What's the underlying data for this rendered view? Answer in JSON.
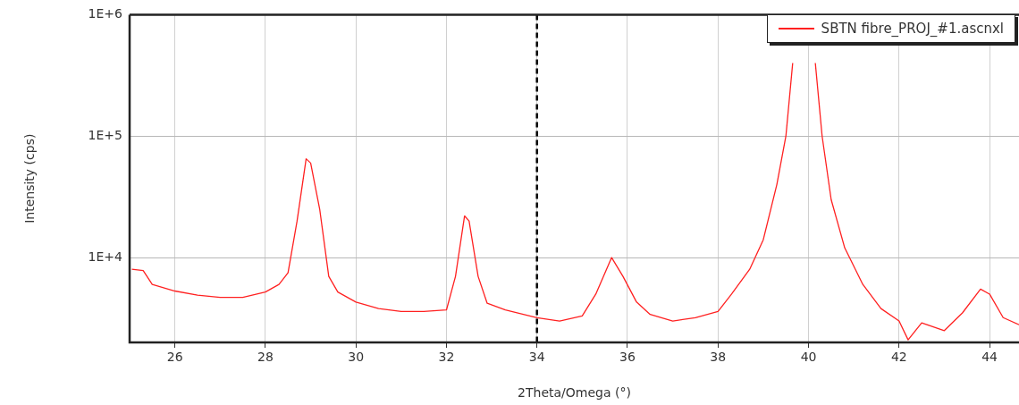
{
  "chart_data": {
    "type": "line",
    "xlabel": "2Theta/Omega (°)",
    "ylabel": "Intensity (cps)",
    "log": "y",
    "grid": true,
    "legend": "top right",
    "marker": "none",
    "line_style": "solid",
    "xlim": [
      25,
      44.65
    ],
    "xticks": [
      26,
      28,
      30,
      32,
      34,
      36,
      38,
      40,
      42,
      44
    ],
    "ylim": [
      2000,
      1000000
    ],
    "yticks": [
      {
        "value": 10000,
        "label": "1E+4"
      },
      {
        "value": 100000,
        "label": "1E+5"
      },
      {
        "value": 1000000,
        "label": "1E+6"
      }
    ],
    "ref_lines": [
      {
        "axis": "x",
        "value": 34,
        "color": "#000000",
        "line_style": "dashed"
      }
    ],
    "series": [
      {
        "name": "SBTN fibre_PROJ_#1.ascnxl",
        "color": "#ff2020",
        "x": [
          25.05,
          25.3,
          25.5,
          26,
          26.5,
          27,
          27.5,
          28,
          28.3,
          28.5,
          28.7,
          28.9,
          29,
          29.2,
          29.4,
          29.6,
          30,
          30.5,
          31,
          31.5,
          32,
          32.2,
          32.4,
          32.5,
          32.7,
          32.9,
          33.3,
          33.7,
          34,
          34.5,
          35,
          35.3,
          35.65,
          35.9,
          36.2,
          36.5,
          37,
          37.5,
          38,
          38.3,
          38.7,
          39,
          39.3,
          39.5,
          39.65,
          39.75,
          40.05,
          40.15,
          40.3,
          40.5,
          40.8,
          41.2,
          41.6,
          42,
          42.2,
          42.5,
          43,
          43.4,
          43.8,
          44,
          44.3,
          44.65
        ],
        "values": [
          8000,
          7800,
          6000,
          5300,
          4900,
          4700,
          4700,
          5200,
          6000,
          7500,
          20000,
          65000,
          60000,
          25000,
          7000,
          5200,
          4300,
          3800,
          3600,
          3600,
          3700,
          7000,
          22000,
          20000,
          7000,
          4200,
          3700,
          3400,
          3200,
          3000,
          3300,
          5000,
          10000,
          7000,
          4300,
          3400,
          3000,
          3200,
          3600,
          5000,
          8000,
          14000,
          40000,
          100000,
          400000,
          null,
          null,
          400000,
          100000,
          30000,
          12000,
          6000,
          3800,
          3000,
          2100,
          2900,
          2500,
          3500,
          5500,
          5000,
          3200,
          2800
        ]
      }
    ]
  }
}
